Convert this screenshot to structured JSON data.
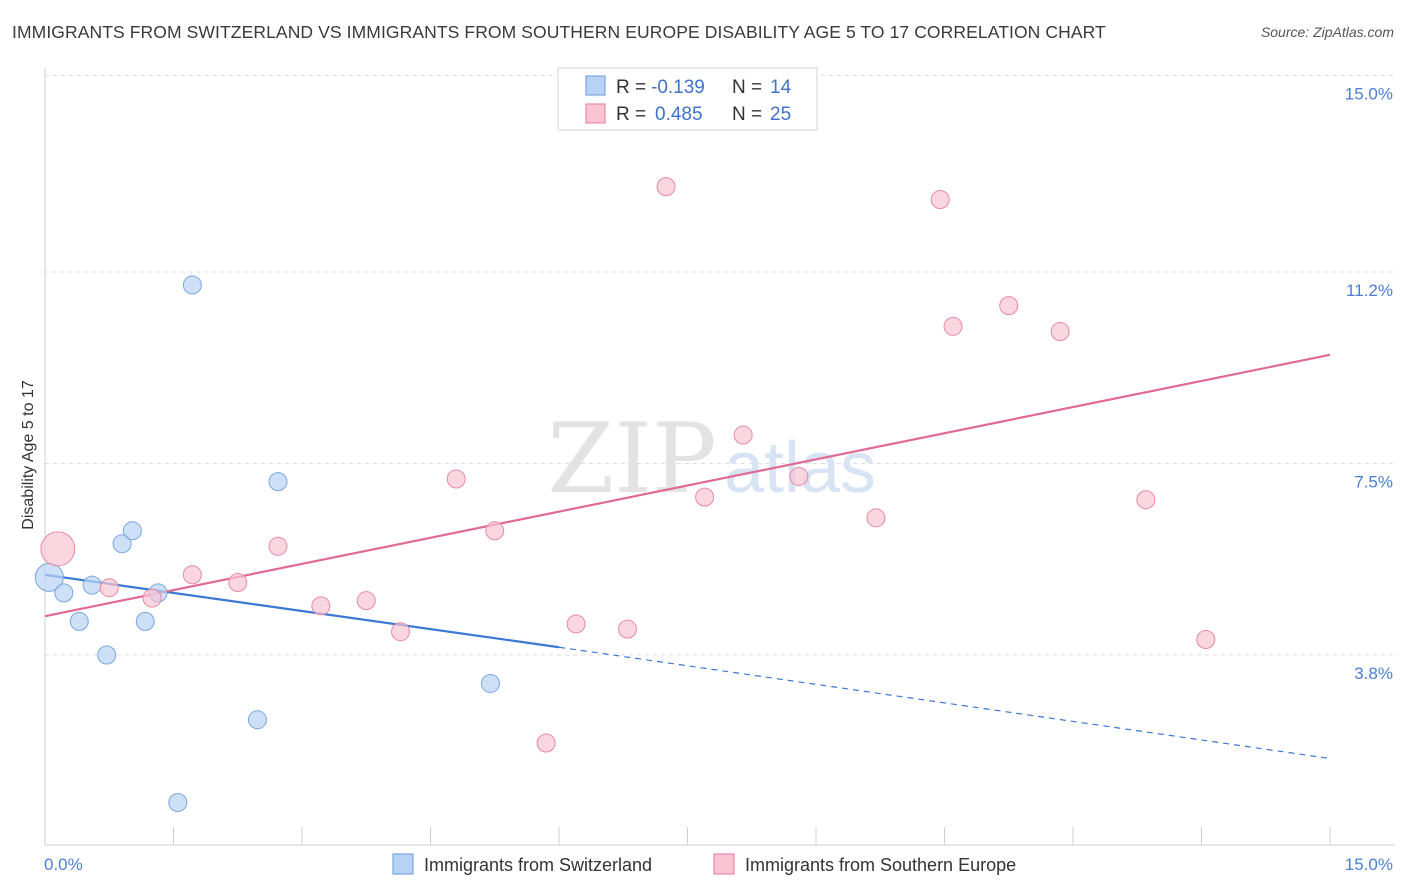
{
  "title": "IMMIGRANTS FROM SWITZERLAND VS IMMIGRANTS FROM SOUTHERN EUROPE DISABILITY AGE 5 TO 17 CORRELATION CHART",
  "source": "Source: ZipAtlas.com",
  "watermark": {
    "zip": "ZIP",
    "atlas": "atlas"
  },
  "colors": {
    "blue_fill": "#b8d3f5",
    "blue_stroke": "#7aa6e0",
    "blue_line": "#3a78d4",
    "pink_fill": "#f8c4d4",
    "pink_stroke": "#e88aa6",
    "pink_line": "#e06a94",
    "grid": "#dcdcdc",
    "tick_text": "#4a7fd4"
  },
  "legend": {
    "rows": [
      {
        "r_label": "R =",
        "r_value": "-0.139",
        "n_label": "N =",
        "n_value": "14",
        "color": "blue"
      },
      {
        "r_label": "R =",
        "r_value": "0.485",
        "n_label": "N =",
        "n_value": "25",
        "color": "pink"
      }
    ]
  },
  "chart_data": {
    "type": "scatter",
    "title": "IMMIGRANTS FROM SWITZERLAND VS IMMIGRANTS FROM SOUTHERN EUROPE DISABILITY AGE 5 TO 17 CORRELATION CHART",
    "xlabel": "",
    "ylabel": "Disability Age 5 to 17",
    "xlim": [
      0,
      15
    ],
    "ylim": [
      0,
      15.5
    ],
    "x_tick_labels": [
      "0.0%",
      "15.0%"
    ],
    "y_ticks": [
      3.8,
      7.5,
      11.2,
      15.0
    ],
    "y_tick_labels": [
      "3.8%",
      "7.5%",
      "11.2%",
      "15.0%"
    ],
    "grid": true,
    "legend_position": "top-center",
    "series": [
      {
        "name": "Immigrants from Switzerland",
        "color": "blue",
        "points": [
          [
            0.05,
            5.3,
            14
          ],
          [
            0.22,
            5.0,
            9
          ],
          [
            0.4,
            4.45,
            9
          ],
          [
            0.55,
            5.15,
            9
          ],
          [
            0.72,
            3.8,
            9
          ],
          [
            0.9,
            5.95,
            9
          ],
          [
            1.02,
            6.2,
            9
          ],
          [
            1.17,
            4.45,
            9
          ],
          [
            1.32,
            5.0,
            9
          ],
          [
            1.55,
            0.95,
            9
          ],
          [
            1.72,
            10.95,
            9
          ],
          [
            2.48,
            2.55,
            9
          ],
          [
            2.72,
            7.15,
            9
          ],
          [
            5.2,
            3.25,
            9
          ]
        ],
        "trend": {
          "x0": 0,
          "y0": 5.35,
          "x1": 6.0,
          "y1": 3.95,
          "dash_to_x": 15,
          "dash_to_y": 1.8
        }
      },
      {
        "name": "Immigrants from Southern Europe",
        "color": "pink",
        "points": [
          [
            0.15,
            5.85,
            17
          ],
          [
            0.75,
            5.1,
            9
          ],
          [
            1.25,
            4.9,
            9
          ],
          [
            1.72,
            5.35,
            9
          ],
          [
            2.25,
            5.2,
            9
          ],
          [
            2.72,
            5.9,
            9
          ],
          [
            3.22,
            4.75,
            9
          ],
          [
            3.75,
            4.85,
            9
          ],
          [
            4.15,
            4.25,
            9
          ],
          [
            4.8,
            7.2,
            9
          ],
          [
            5.25,
            6.2,
            9
          ],
          [
            5.85,
            2.1,
            9
          ],
          [
            6.2,
            4.4,
            9
          ],
          [
            6.8,
            4.3,
            9
          ],
          [
            7.25,
            12.85,
            9
          ],
          [
            7.7,
            6.85,
            9
          ],
          [
            8.15,
            8.05,
            9
          ],
          [
            8.8,
            7.25,
            9
          ],
          [
            9.7,
            6.45,
            9
          ],
          [
            10.45,
            12.6,
            9
          ],
          [
            10.6,
            10.15,
            9
          ],
          [
            11.25,
            10.55,
            9
          ],
          [
            11.85,
            10.05,
            9
          ],
          [
            12.85,
            6.8,
            9
          ],
          [
            13.55,
            4.1,
            9
          ]
        ],
        "trend": {
          "x0": 0,
          "y0": 4.55,
          "x1": 15,
          "y1": 9.6
        }
      }
    ]
  },
  "bottom_legend": [
    {
      "label": "Immigrants from Switzerland",
      "color": "blue"
    },
    {
      "label": "Immigrants from Southern Europe",
      "color": "pink"
    }
  ]
}
